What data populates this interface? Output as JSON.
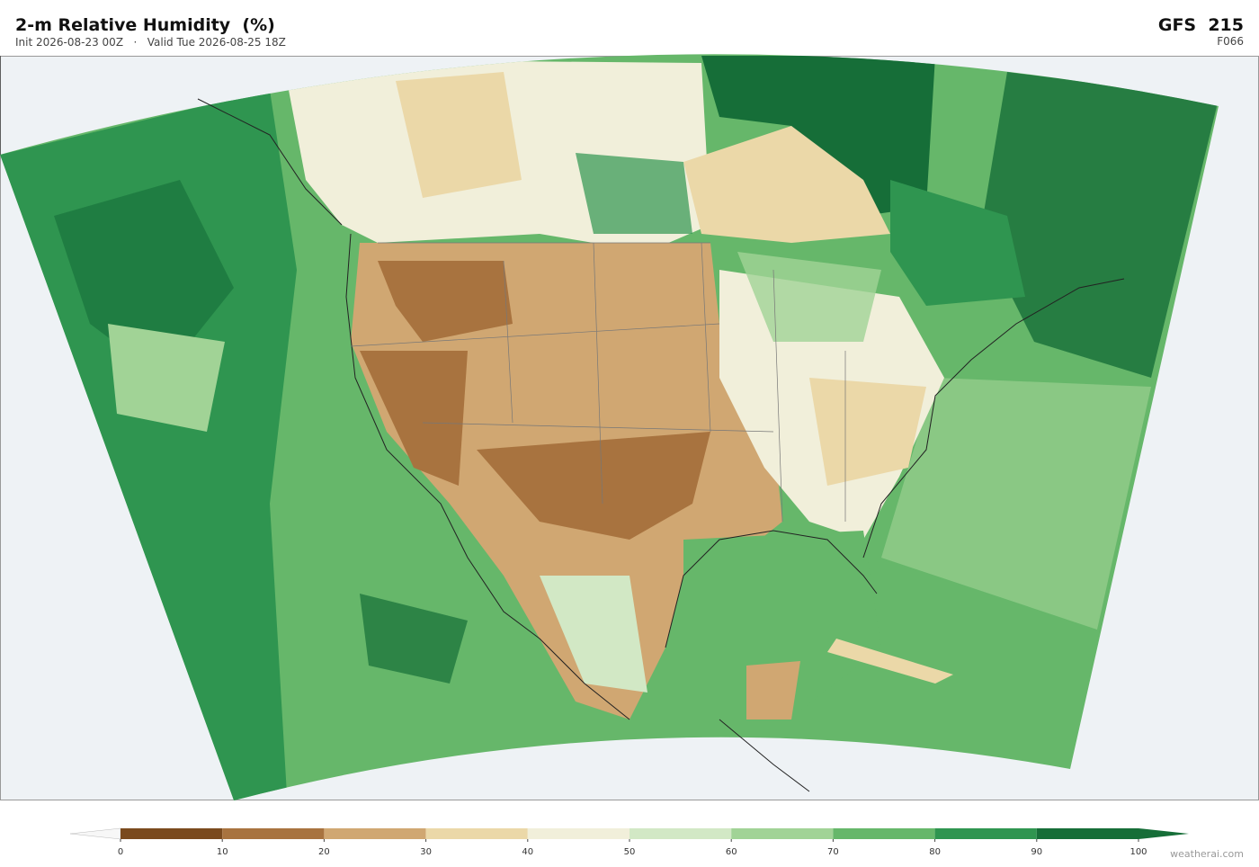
{
  "header": {
    "title": "2-m Relative Humidity  (%)",
    "subtitle": "Init 2026-08-23 00Z   ·   Valid Tue 2026-08-25 18Z",
    "model": "GFS  215",
    "forecast_hour": "F066"
  },
  "colorbar": {
    "ticks": [
      0,
      10,
      20,
      30,
      40,
      50,
      60,
      70,
      80,
      90,
      100
    ],
    "colors": [
      "#7a4a1e",
      "#a8733f",
      "#d0a772",
      "#ebd8a8",
      "#f1efda",
      "#d2e8c5",
      "#a1d396",
      "#66b76a",
      "#2f9550",
      "#166e38"
    ],
    "under_color": "#f7f7f7",
    "over_color": "#166e38"
  },
  "credit": "weatherai.com"
}
